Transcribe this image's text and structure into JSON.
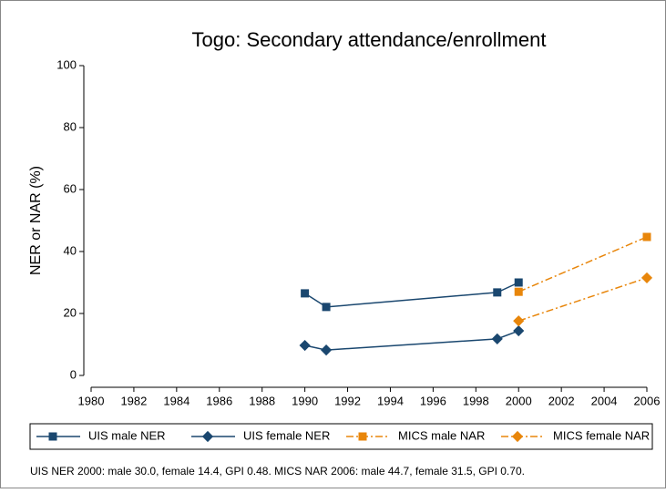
{
  "chart_data": {
    "type": "line",
    "title": "Togo: Secondary attendance/enrollment",
    "y_label": "NER or NAR (%)",
    "note": "UIS NER 2000: male 30.0, female 14.4, GPI 0.48. MICS NAR 2006: male 44.7, female 31.5, GPI 0.70.",
    "xlim": [
      1980,
      2006
    ],
    "xticks": [
      1980,
      1982,
      1984,
      1986,
      1988,
      1990,
      1992,
      1994,
      1996,
      1998,
      2000,
      2002,
      2004,
      2006
    ],
    "ylim": [
      0,
      100
    ],
    "yticks": [
      0,
      20,
      40,
      60,
      80,
      100
    ],
    "series": [
      {
        "name": "UIS male NER",
        "color": "#1a476f",
        "marker": "square",
        "dash": "solid",
        "x": [
          1990,
          1991,
          1999,
          2000
        ],
        "values": [
          26.5,
          22.1,
          26.8,
          30.0
        ]
      },
      {
        "name": "UIS female NER",
        "color": "#1a476f",
        "marker": "diamond",
        "dash": "solid",
        "x": [
          1990,
          1991,
          1999,
          2000
        ],
        "values": [
          9.7,
          8.2,
          11.8,
          14.4
        ]
      },
      {
        "name": "MICS male NAR",
        "color": "#e8860b",
        "marker": "square",
        "dash": "dashdot",
        "x": [
          2000,
          2006
        ],
        "values": [
          27.0,
          44.7
        ]
      },
      {
        "name": "MICS female NAR",
        "color": "#e8860b",
        "marker": "diamond",
        "dash": "dashdot",
        "x": [
          2000,
          2006
        ],
        "values": [
          17.6,
          31.5
        ]
      }
    ]
  }
}
